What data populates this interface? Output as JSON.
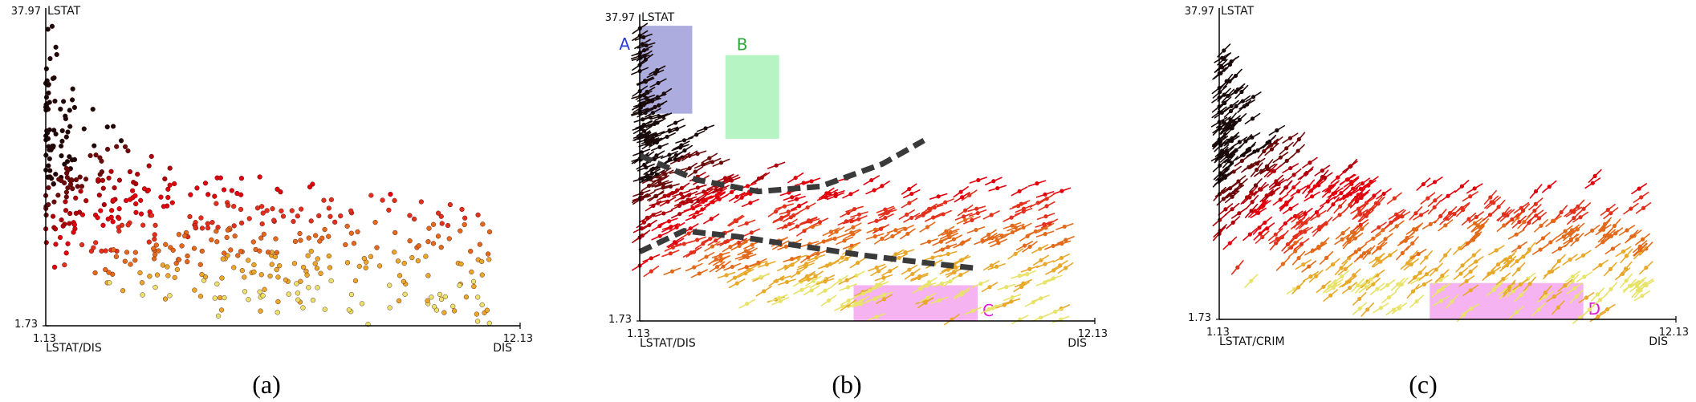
{
  "palette": [
    "#e8e36a",
    "#e8a82a",
    "#e36a1a",
    "#e3301c",
    "#e3000d",
    "#b0000a",
    "#6a0a0a",
    "#1a0a0a"
  ],
  "region_style": {
    "A": {
      "fill": "#9e9fd8",
      "text": "#2b3bd6"
    },
    "B": {
      "fill": "#a9f2b8",
      "text": "#2fa43a"
    },
    "C": {
      "fill": "#f4a6ee",
      "text": "#e01bdc"
    },
    "D": {
      "fill": "#f4a6ee",
      "text": "#e01bdc"
    }
  },
  "chart_data": [
    {
      "type": "scatter",
      "caption": "(a)",
      "ylabel": "LSTAT",
      "xlabel": "LSTAT/DIS",
      "xlabel_right": "DIS",
      "ytick_top": "37.97",
      "ytick_bottom": "1.73",
      "xtick_left": "1.13",
      "xtick_right": "12.13",
      "xlim": [
        1.13,
        12.13
      ],
      "ylim": [
        1.73,
        37.97
      ],
      "glyph": "dot",
      "seed": 11,
      "n_points": 520,
      "regions": [],
      "dashed_curves": []
    },
    {
      "type": "scatter",
      "caption": "(b)",
      "ylabel": "LSTAT",
      "xlabel": "LSTAT/DIS",
      "xlabel_right": "DIS",
      "ytick_top": "37.97",
      "ytick_bottom": "1.73",
      "xtick_left": "1.13",
      "xtick_right": "12.13",
      "xlim": [
        1.13,
        12.13
      ],
      "ylim": [
        1.73,
        37.97
      ],
      "glyph": "arrow",
      "tilt": 0.45,
      "seed": 23,
      "n_points": 520,
      "regions": [
        {
          "label": "A",
          "x": [
            1.13,
            2.4
          ],
          "y": [
            26.5,
            37.0
          ],
          "label_side": "left"
        },
        {
          "label": "B",
          "x": [
            3.2,
            4.5
          ],
          "y": [
            23.5,
            33.5
          ],
          "label_side": "top"
        },
        {
          "label": "C",
          "x": [
            6.3,
            9.3
          ],
          "y": [
            1.73,
            6.0
          ],
          "label_side": "right"
        }
      ],
      "dashed_curves": [
        {
          "x": [
            1.13,
            2.5,
            4.0,
            5.5,
            7.0,
            8.0
          ],
          "y": [
            21.5,
            18.6,
            17.2,
            17.8,
            20.5,
            23.3
          ]
        },
        {
          "x": [
            1.13,
            2.2,
            3.5,
            5.0,
            6.5,
            8.0,
            9.3
          ],
          "y": [
            10.0,
            12.5,
            11.8,
            10.7,
            9.6,
            8.7,
            8.0
          ]
        }
      ]
    },
    {
      "type": "scatter",
      "caption": "(c)",
      "ylabel": "LSTAT",
      "xlabel": "LSTAT/CRIM",
      "xlabel_right": "DIS",
      "ytick_top": "37.97",
      "ytick_bottom": "1.73",
      "xtick_left": "1.13",
      "xtick_right": "12.13",
      "xlim": [
        1.13,
        12.13
      ],
      "ylim": [
        1.73,
        37.97
      ],
      "glyph": "arrow",
      "tilt": 0.7,
      "seed": 37,
      "n_points": 520,
      "regions": [
        {
          "label": "D",
          "x": [
            6.2,
            9.9
          ],
          "y": [
            1.73,
            6.0
          ],
          "label_side": "right"
        }
      ],
      "dashed_curves": []
    }
  ]
}
